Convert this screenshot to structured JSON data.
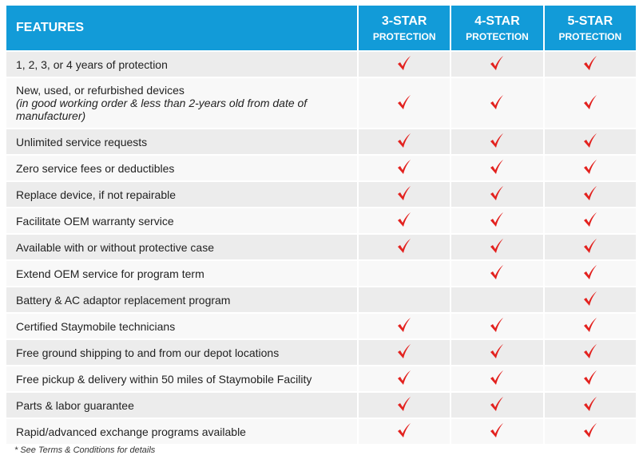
{
  "header": {
    "features": "FEATURES",
    "plans": [
      {
        "title": "3-STAR",
        "subtitle": "PROTECTION"
      },
      {
        "title": "4-STAR",
        "subtitle": "PROTECTION"
      },
      {
        "title": "5-STAR",
        "subtitle": "PROTECTION"
      }
    ]
  },
  "rows": [
    {
      "feature": "1, 2, 3, or 4 years of protection",
      "checks": [
        true,
        true,
        true
      ]
    },
    {
      "feature": "New, used, or refurbished devices",
      "note": "(in good working order & less than 2-years old from date of manufacturer)",
      "checks": [
        true,
        true,
        true
      ]
    },
    {
      "feature": "Unlimited service requests",
      "checks": [
        true,
        true,
        true
      ]
    },
    {
      "feature": "Zero service fees or deductibles",
      "checks": [
        true,
        true,
        true
      ]
    },
    {
      "feature": "Replace device, if not repairable",
      "checks": [
        true,
        true,
        true
      ]
    },
    {
      "feature": "Facilitate OEM warranty service",
      "checks": [
        true,
        true,
        true
      ]
    },
    {
      "feature": "Available with or without protective case",
      "checks": [
        true,
        true,
        true
      ]
    },
    {
      "feature": "Extend OEM service for program term",
      "checks": [
        false,
        true,
        true
      ]
    },
    {
      "feature": "Battery & AC adaptor replacement program",
      "checks": [
        false,
        false,
        true
      ]
    },
    {
      "feature": "Certified Staymobile technicians",
      "checks": [
        true,
        true,
        true
      ]
    },
    {
      "feature": "Free ground shipping to and from our depot locations",
      "checks": [
        true,
        true,
        true
      ]
    },
    {
      "feature": "Free pickup & delivery within 50 miles of Staymobile Facility",
      "checks": [
        true,
        true,
        true
      ]
    },
    {
      "feature": "Parts & labor guarantee",
      "checks": [
        true,
        true,
        true
      ]
    },
    {
      "feature": "Rapid/advanced exchange programs available",
      "checks": [
        true,
        true,
        true
      ]
    }
  ],
  "footnote": "* See Terms & Conditions for details"
}
